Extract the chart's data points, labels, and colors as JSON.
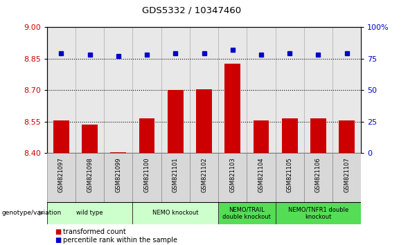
{
  "title": "GDS5332 / 10347460",
  "samples": [
    "GSM821097",
    "GSM821098",
    "GSM821099",
    "GSM821100",
    "GSM821101",
    "GSM821102",
    "GSM821103",
    "GSM821104",
    "GSM821105",
    "GSM821106",
    "GSM821107"
  ],
  "bar_values": [
    8.555,
    8.535,
    8.405,
    8.565,
    8.7,
    8.705,
    8.825,
    8.555,
    8.565,
    8.565,
    8.555
  ],
  "percentile_values": [
    79,
    78,
    77,
    78,
    79,
    79,
    82,
    78,
    79,
    78,
    79
  ],
  "ylim_left": [
    8.4,
    9.0
  ],
  "ylim_right": [
    0,
    100
  ],
  "yticks_left": [
    8.4,
    8.55,
    8.7,
    8.85,
    9.0
  ],
  "yticks_right": [
    0,
    25,
    50,
    75,
    100
  ],
  "bar_color": "#cc0000",
  "dot_color": "#0000cc",
  "bar_bottom": 8.4,
  "hline_values": [
    8.55,
    8.7,
    8.85
  ],
  "groups": [
    {
      "label": "wild type",
      "start": 0,
      "end": 3,
      "color": "#ccffcc"
    },
    {
      "label": "NEMO knockout",
      "start": 3,
      "end": 6,
      "color": "#ccffcc"
    },
    {
      "label": "NEMO/TRAIL\ndouble knockout",
      "start": 6,
      "end": 8,
      "color": "#55dd55"
    },
    {
      "label": "NEMO/TNFR1 double\nknockout",
      "start": 8,
      "end": 11,
      "color": "#55dd55"
    }
  ],
  "legend_bar_label": "transformed count",
  "legend_dot_label": "percentile rank within the sample",
  "genotype_label": "genotype/variation",
  "background_color": "#ffffff",
  "plot_bg_color": "#e8e8e8",
  "sample_box_color": "#d8d8d8",
  "tick_label_color_left": "#cc0000",
  "tick_label_color_right": "#0000cc"
}
